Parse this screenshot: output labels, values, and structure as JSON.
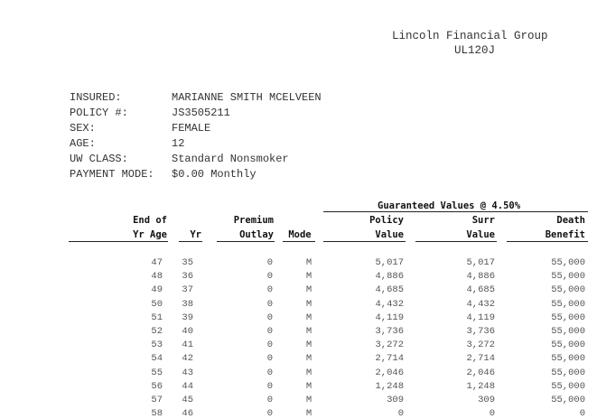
{
  "header": {
    "company": "Lincoln Financial Group",
    "product_code": "UL120J"
  },
  "insured_info": [
    {
      "label": "INSURED:",
      "value": "MARIANNE SMITH MCELVEEN"
    },
    {
      "label": "POLICY #:",
      "value": "JS3505211"
    },
    {
      "label": "SEX:",
      "value": "FEMALE"
    },
    {
      "label": "AGE:",
      "value": "12"
    },
    {
      "label": "UW CLASS:",
      "value": "Standard Nonsmoker"
    },
    {
      "label": "PAYMENT MODE:",
      "value": "$0.00 Monthly"
    }
  ],
  "table": {
    "group_header": "Guaranteed Values @ 4.50%",
    "columns": [
      {
        "line1": "End of",
        "line2": "Yr Age"
      },
      {
        "line1": "",
        "line2": "Yr"
      },
      {
        "line1": "Premium",
        "line2": "Outlay"
      },
      {
        "line1": "",
        "line2": "Mode"
      },
      {
        "line1": "Policy",
        "line2": "Value"
      },
      {
        "line1": "Surr",
        "line2": "Value"
      },
      {
        "line1": "Death",
        "line2": "Benefit"
      }
    ],
    "rows": [
      [
        "47",
        "35",
        "0",
        "M",
        "5,017",
        "5,017",
        "55,000"
      ],
      [
        "48",
        "36",
        "0",
        "M",
        "4,886",
        "4,886",
        "55,000"
      ],
      [
        "49",
        "37",
        "0",
        "M",
        "4,685",
        "4,685",
        "55,000"
      ],
      [
        "50",
        "38",
        "0",
        "M",
        "4,432",
        "4,432",
        "55,000"
      ],
      [
        "51",
        "39",
        "0",
        "M",
        "4,119",
        "4,119",
        "55,000"
      ],
      [
        "52",
        "40",
        "0",
        "M",
        "3,736",
        "3,736",
        "55,000"
      ],
      [
        "53",
        "41",
        "0",
        "M",
        "3,272",
        "3,272",
        "55,000"
      ],
      [
        "54",
        "42",
        "0",
        "M",
        "2,714",
        "2,714",
        "55,000"
      ],
      [
        "55",
        "43",
        "0",
        "M",
        "2,046",
        "2,046",
        "55,000"
      ],
      [
        "56",
        "44",
        "0",
        "M",
        "1,248",
        "1,248",
        "55,000"
      ],
      [
        "57",
        "45",
        "0",
        "M",
        "309",
        "309",
        "55,000"
      ],
      [
        "58",
        "46",
        "0",
        "M",
        "0",
        "0",
        "0"
      ]
    ]
  }
}
